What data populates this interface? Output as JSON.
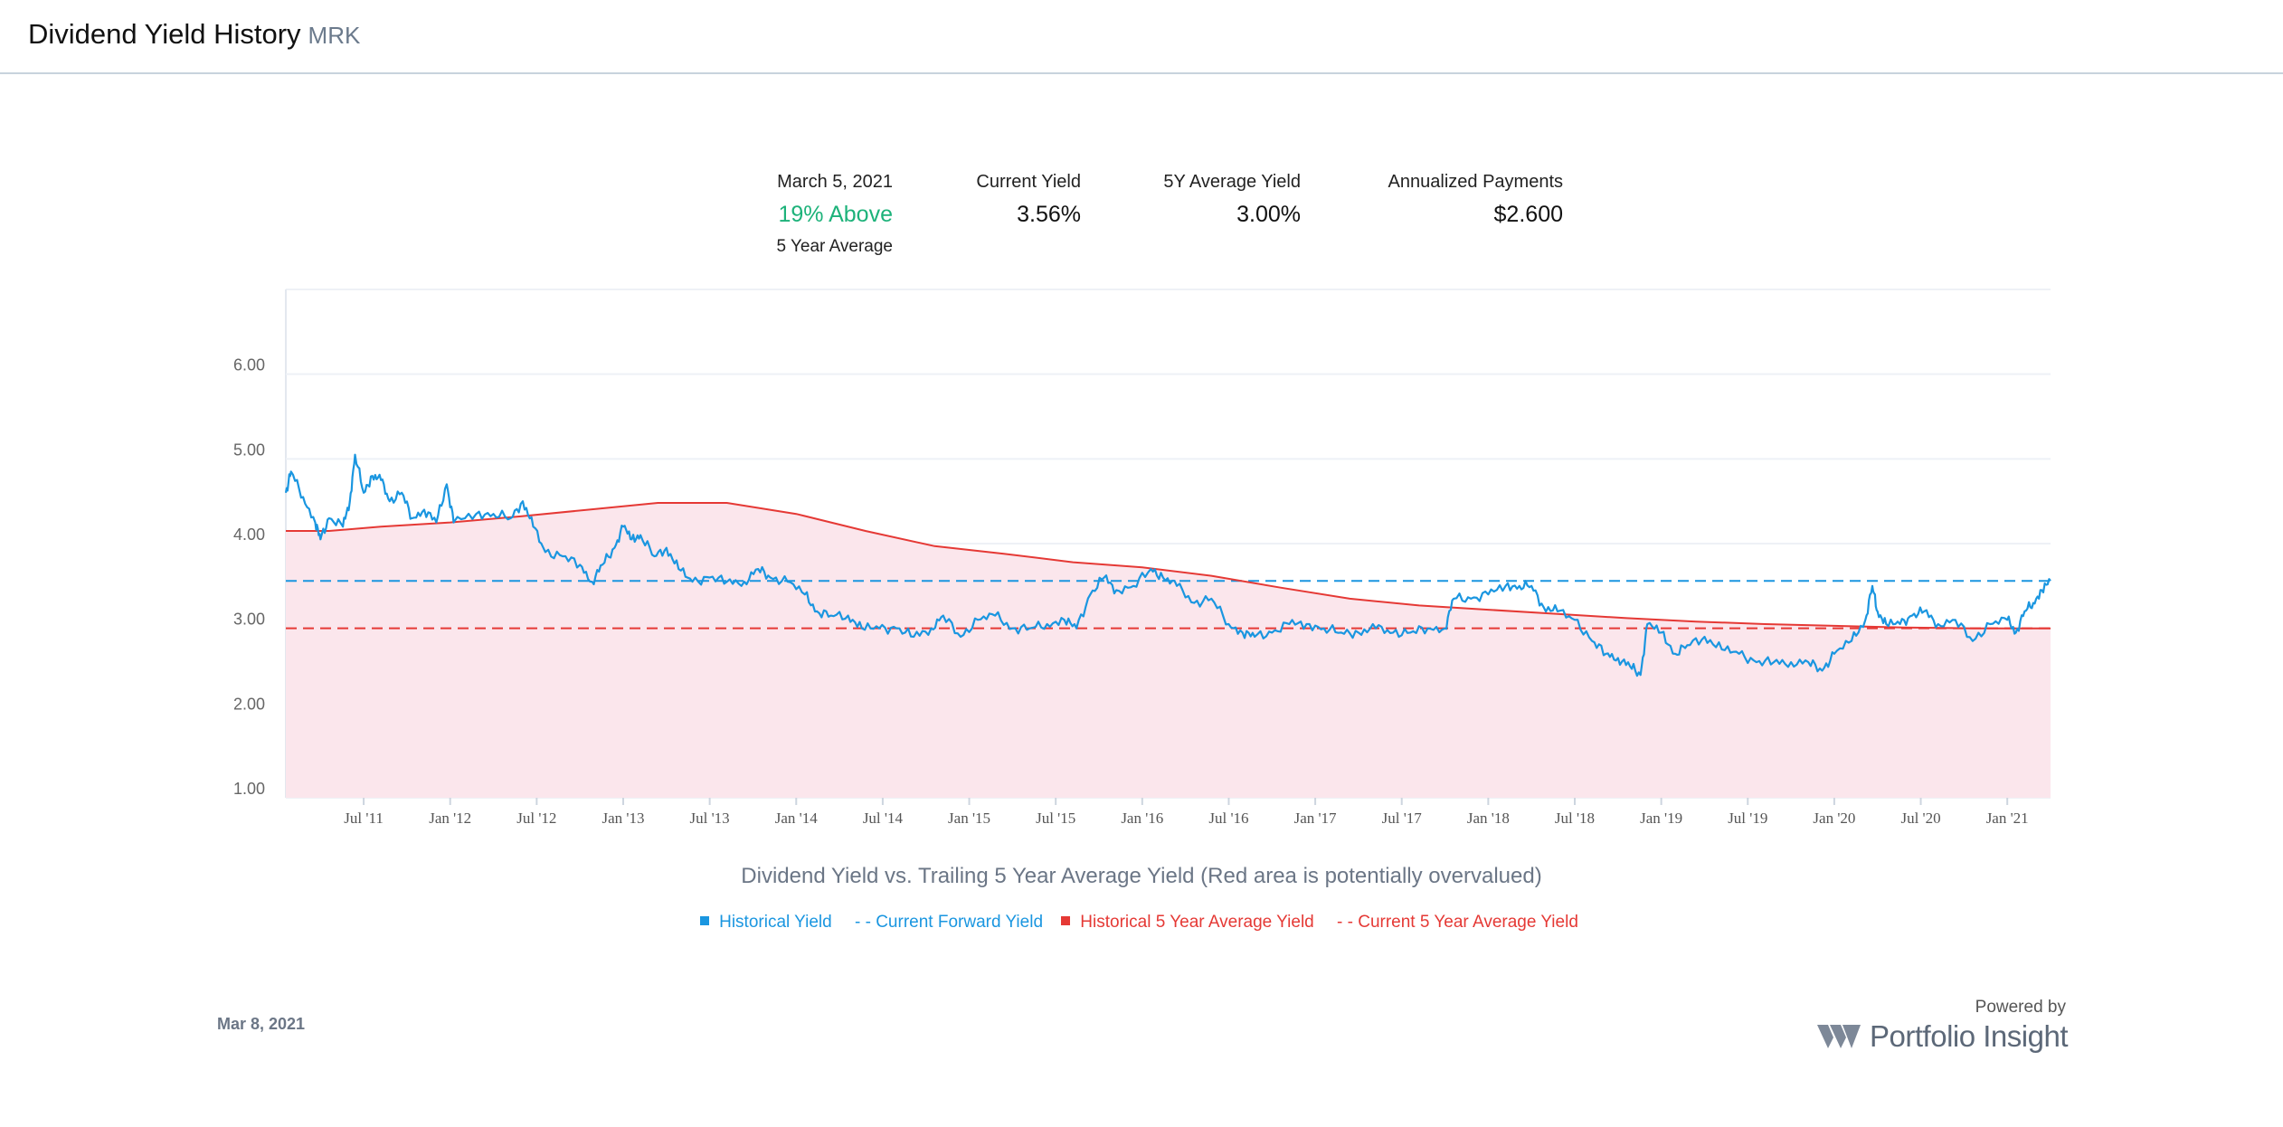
{
  "header": {
    "title": "Dividend Yield History",
    "ticker": "MRK"
  },
  "stats": {
    "date_label": "March 5, 2021",
    "relative_value": "19%  Above",
    "relative_sub": "5 Year Average",
    "current_yield_label": "Current Yield",
    "current_yield_value": "3.56%",
    "avg_yield_label": "5Y Average Yield",
    "avg_yield_value": "3.00%",
    "payments_label": "Annualized Payments",
    "payments_value": "$2.600"
  },
  "chart_data": {
    "type": "line",
    "y_ticks": [
      "1.00",
      "2.00",
      "3.00",
      "4.00",
      "5.00",
      "6.00"
    ],
    "ylim": [
      1,
      7
    ],
    "x_ticks": [
      "Jul '11",
      "Jan '12",
      "Jul '12",
      "Jan '13",
      "Jul '13",
      "Jan '14",
      "Jul '14",
      "Jan '15",
      "Jul '15",
      "Jan '16",
      "Jul '16",
      "Jan '17",
      "Jul '17",
      "Jan '18",
      "Jul '18",
      "Jan '19",
      "Jul '19",
      "Jan '20",
      "Jul '20",
      "Jan '21"
    ],
    "xlim": [
      2011.05,
      2021.25
    ],
    "grid": true,
    "caption": "Dividend Yield vs. Trailing 5 Year Average Yield (Red area is potentially overvalued)",
    "current_forward_yield": 3.56,
    "current_5y_average_yield": 3.0,
    "series": [
      {
        "name": "Historical Yield",
        "color": "#1a96e0",
        "points": [
          [
            2011.05,
            4.6
          ],
          [
            2011.08,
            4.85
          ],
          [
            2011.15,
            4.55
          ],
          [
            2011.22,
            4.25
          ],
          [
            2011.25,
            4.05
          ],
          [
            2011.3,
            4.3
          ],
          [
            2011.38,
            4.2
          ],
          [
            2011.42,
            4.5
          ],
          [
            2011.45,
            5.05
          ],
          [
            2011.5,
            4.6
          ],
          [
            2011.55,
            4.8
          ],
          [
            2011.6,
            4.75
          ],
          [
            2011.65,
            4.5
          ],
          [
            2011.72,
            4.6
          ],
          [
            2011.78,
            4.3
          ],
          [
            2011.85,
            4.4
          ],
          [
            2011.92,
            4.25
          ],
          [
            2011.98,
            4.7
          ],
          [
            2012.02,
            4.25
          ],
          [
            2012.15,
            4.35
          ],
          [
            2012.25,
            4.35
          ],
          [
            2012.35,
            4.3
          ],
          [
            2012.42,
            4.5
          ],
          [
            2012.48,
            4.2
          ],
          [
            2012.55,
            3.9
          ],
          [
            2012.65,
            3.85
          ],
          [
            2012.75,
            3.75
          ],
          [
            2012.82,
            3.55
          ],
          [
            2012.88,
            3.75
          ],
          [
            2012.95,
            3.95
          ],
          [
            2013.0,
            4.2
          ],
          [
            2013.05,
            4.05
          ],
          [
            2013.1,
            4.1
          ],
          [
            2013.18,
            3.85
          ],
          [
            2013.25,
            3.95
          ],
          [
            2013.32,
            3.7
          ],
          [
            2013.4,
            3.55
          ],
          [
            2013.5,
            3.6
          ],
          [
            2013.6,
            3.55
          ],
          [
            2013.7,
            3.55
          ],
          [
            2013.78,
            3.7
          ],
          [
            2013.85,
            3.6
          ],
          [
            2013.95,
            3.55
          ],
          [
            2014.05,
            3.4
          ],
          [
            2014.12,
            3.2
          ],
          [
            2014.2,
            3.15
          ],
          [
            2014.3,
            3.15
          ],
          [
            2014.38,
            3.0
          ],
          [
            2014.48,
            3.0
          ],
          [
            2014.58,
            3.0
          ],
          [
            2014.68,
            2.9
          ],
          [
            2014.78,
            3.0
          ],
          [
            2014.85,
            3.15
          ],
          [
            2014.95,
            2.9
          ],
          [
            2015.05,
            3.1
          ],
          [
            2015.15,
            3.15
          ],
          [
            2015.25,
            3.0
          ],
          [
            2015.35,
            3.0
          ],
          [
            2015.45,
            3.05
          ],
          [
            2015.55,
            3.1
          ],
          [
            2015.62,
            3.0
          ],
          [
            2015.7,
            3.4
          ],
          [
            2015.78,
            3.6
          ],
          [
            2015.85,
            3.45
          ],
          [
            2015.95,
            3.5
          ],
          [
            2016.05,
            3.7
          ],
          [
            2016.12,
            3.6
          ],
          [
            2016.2,
            3.5
          ],
          [
            2016.3,
            3.3
          ],
          [
            2016.4,
            3.35
          ],
          [
            2016.5,
            3.05
          ],
          [
            2016.58,
            2.95
          ],
          [
            2016.65,
            2.9
          ],
          [
            2016.75,
            2.95
          ],
          [
            2016.85,
            3.05
          ],
          [
            2016.95,
            3.05
          ],
          [
            2017.05,
            3.0
          ],
          [
            2017.15,
            2.95
          ],
          [
            2017.25,
            2.95
          ],
          [
            2017.35,
            3.0
          ],
          [
            2017.45,
            2.95
          ],
          [
            2017.55,
            2.95
          ],
          [
            2017.65,
            3.0
          ],
          [
            2017.75,
            3.0
          ],
          [
            2017.8,
            3.35
          ],
          [
            2017.9,
            3.35
          ],
          [
            2018.0,
            3.4
          ],
          [
            2018.1,
            3.5
          ],
          [
            2018.18,
            3.5
          ],
          [
            2018.25,
            3.5
          ],
          [
            2018.32,
            3.25
          ],
          [
            2018.4,
            3.2
          ],
          [
            2018.5,
            3.1
          ],
          [
            2018.6,
            2.85
          ],
          [
            2018.68,
            2.7
          ],
          [
            2018.75,
            2.65
          ],
          [
            2018.82,
            2.55
          ],
          [
            2018.88,
            2.45
          ],
          [
            2018.92,
            3.05
          ],
          [
            2019.0,
            2.95
          ],
          [
            2019.08,
            2.7
          ],
          [
            2019.15,
            2.8
          ],
          [
            2019.25,
            2.9
          ],
          [
            2019.35,
            2.75
          ],
          [
            2019.45,
            2.7
          ],
          [
            2019.55,
            2.6
          ],
          [
            2019.65,
            2.6
          ],
          [
            2019.75,
            2.6
          ],
          [
            2019.85,
            2.6
          ],
          [
            2019.93,
            2.5
          ],
          [
            2020.0,
            2.7
          ],
          [
            2020.1,
            2.85
          ],
          [
            2020.18,
            3.1
          ],
          [
            2020.22,
            3.5
          ],
          [
            2020.25,
            3.2
          ],
          [
            2020.3,
            3.05
          ],
          [
            2020.38,
            3.05
          ],
          [
            2020.45,
            3.15
          ],
          [
            2020.52,
            3.2
          ],
          [
            2020.6,
            3.05
          ],
          [
            2020.7,
            3.1
          ],
          [
            2020.8,
            2.85
          ],
          [
            2020.9,
            3.05
          ],
          [
            2021.0,
            3.1
          ],
          [
            2021.05,
            2.95
          ],
          [
            2021.1,
            3.2
          ],
          [
            2021.15,
            3.3
          ],
          [
            2021.2,
            3.45
          ],
          [
            2021.25,
            3.56
          ]
        ]
      },
      {
        "name": "Historical 5 Year Average Yield",
        "color": "#e53935",
        "points": [
          [
            2011.05,
            4.15
          ],
          [
            2011.3,
            4.15
          ],
          [
            2011.6,
            4.2
          ],
          [
            2012.0,
            4.25
          ],
          [
            2012.4,
            4.32
          ],
          [
            2012.8,
            4.4
          ],
          [
            2013.2,
            4.48
          ],
          [
            2013.6,
            4.48
          ],
          [
            2014.0,
            4.35
          ],
          [
            2014.4,
            4.15
          ],
          [
            2014.8,
            3.97
          ],
          [
            2015.2,
            3.88
          ],
          [
            2015.6,
            3.78
          ],
          [
            2016.0,
            3.72
          ],
          [
            2016.4,
            3.62
          ],
          [
            2016.8,
            3.48
          ],
          [
            2017.2,
            3.35
          ],
          [
            2017.6,
            3.27
          ],
          [
            2018.0,
            3.22
          ],
          [
            2018.4,
            3.17
          ],
          [
            2018.8,
            3.12
          ],
          [
            2019.2,
            3.08
          ],
          [
            2019.6,
            3.05
          ],
          [
            2020.0,
            3.03
          ],
          [
            2020.4,
            3.01
          ],
          [
            2020.8,
            3.0
          ],
          [
            2021.25,
            3.0
          ]
        ]
      }
    ],
    "legend": [
      {
        "label": "Historical Yield",
        "marker": "square",
        "color": "#1a96e0"
      },
      {
        "label": "- - Current Forward Yield",
        "marker": "dash",
        "color": "#1a96e0"
      },
      {
        "label": "Historical 5 Year Average Yield",
        "marker": "square",
        "color": "#e53935"
      },
      {
        "label": "- - Current 5 Year Average Yield",
        "marker": "dash",
        "color": "#e53935"
      }
    ]
  },
  "footer": {
    "date": "Mar 8, 2021",
    "powered_by": "Powered by",
    "brand": "Portfolio Insight"
  }
}
